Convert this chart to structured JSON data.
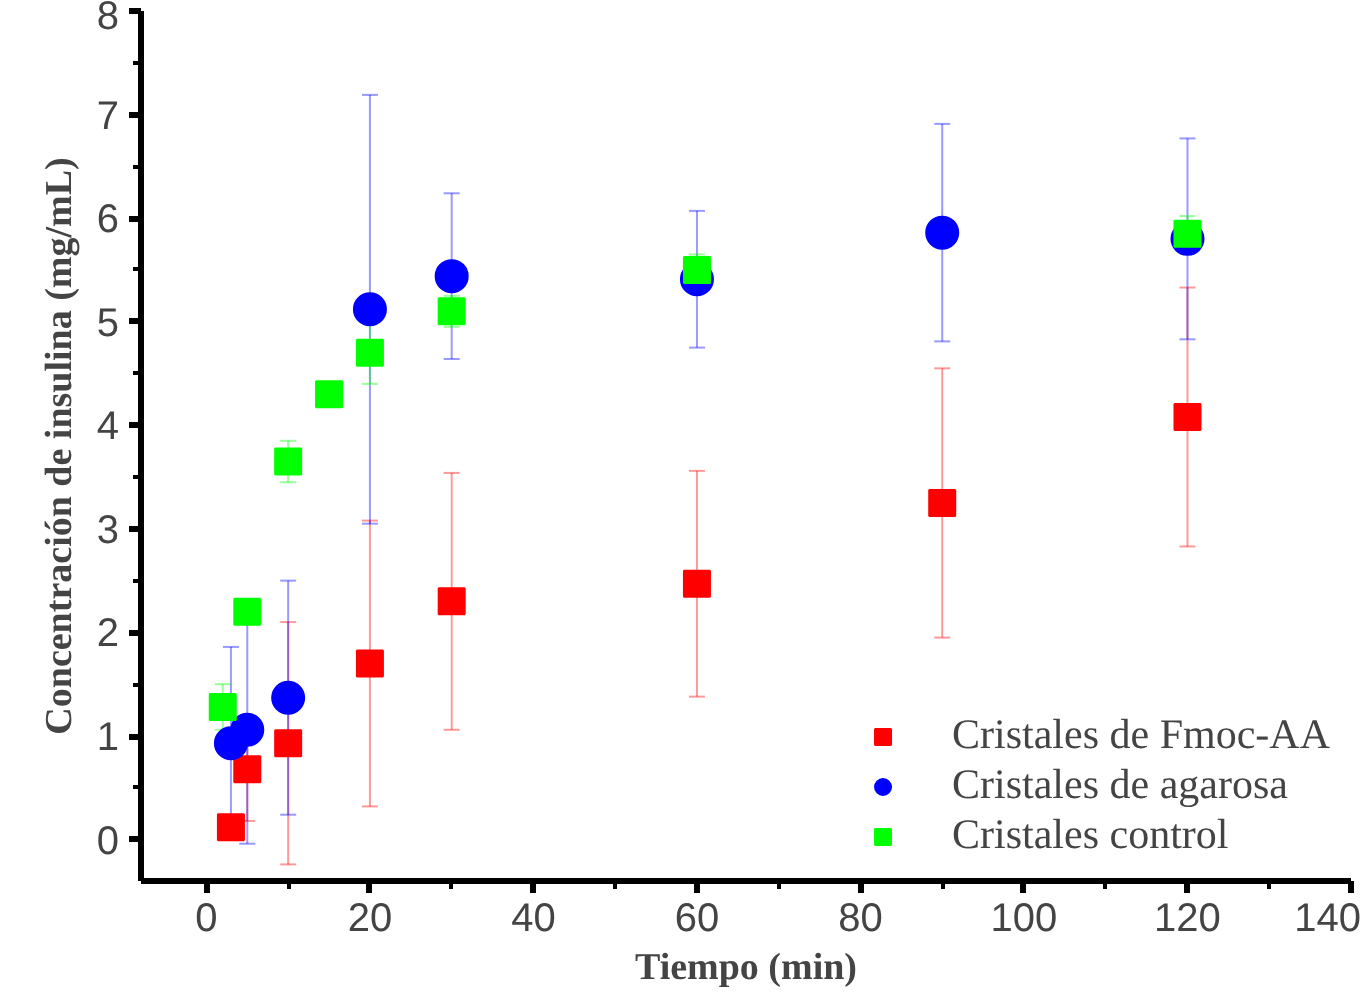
{
  "chart_data": {
    "type": "scatter",
    "xlabel": "Tiempo (min)",
    "ylabel": "Concentración de insulina (mg/mL)",
    "xlim": [
      -8,
      140
    ],
    "ylim": [
      -0.4,
      8
    ],
    "xticks": [
      0,
      20,
      40,
      60,
      80,
      100,
      120,
      140
    ],
    "yticks": [
      0,
      1,
      2,
      3,
      4,
      5,
      6,
      7,
      8
    ],
    "grid": false,
    "legend": "bottom right",
    "series": [
      {
        "name": "Cristales de Fmoc-AA",
        "color": "#ff0000",
        "marker": "square",
        "x": [
          3,
          5,
          10,
          20,
          30,
          60,
          90,
          120
        ],
        "values": [
          0.12,
          0.68,
          0.93,
          1.7,
          2.3,
          2.47,
          3.25,
          4.08
        ],
        "errors": [
          0.1,
          0.5,
          1.17,
          1.38,
          1.24,
          1.09,
          1.3,
          1.25
        ]
      },
      {
        "name": "Cristales de agarosa",
        "color": "#0000ff",
        "marker": "circle",
        "x": [
          3,
          5,
          10,
          20,
          30,
          60,
          90,
          120
        ],
        "values": [
          0.93,
          1.06,
          1.37,
          5.12,
          5.44,
          5.41,
          5.86,
          5.8
        ],
        "errors": [
          0.93,
          1.1,
          1.13,
          2.07,
          0.8,
          0.66,
          1.05,
          0.97
        ]
      },
      {
        "name": "Cristales control",
        "color": "#00ff00",
        "marker": "square",
        "x": [
          2,
          5,
          10,
          15,
          20,
          30,
          60,
          120
        ],
        "values": [
          1.28,
          2.2,
          3.65,
          4.3,
          4.7,
          5.1,
          5.5,
          5.85
        ],
        "errors": [
          0.22,
          null,
          0.2,
          null,
          0.3,
          0.15,
          0.15,
          0.17
        ]
      }
    ]
  }
}
